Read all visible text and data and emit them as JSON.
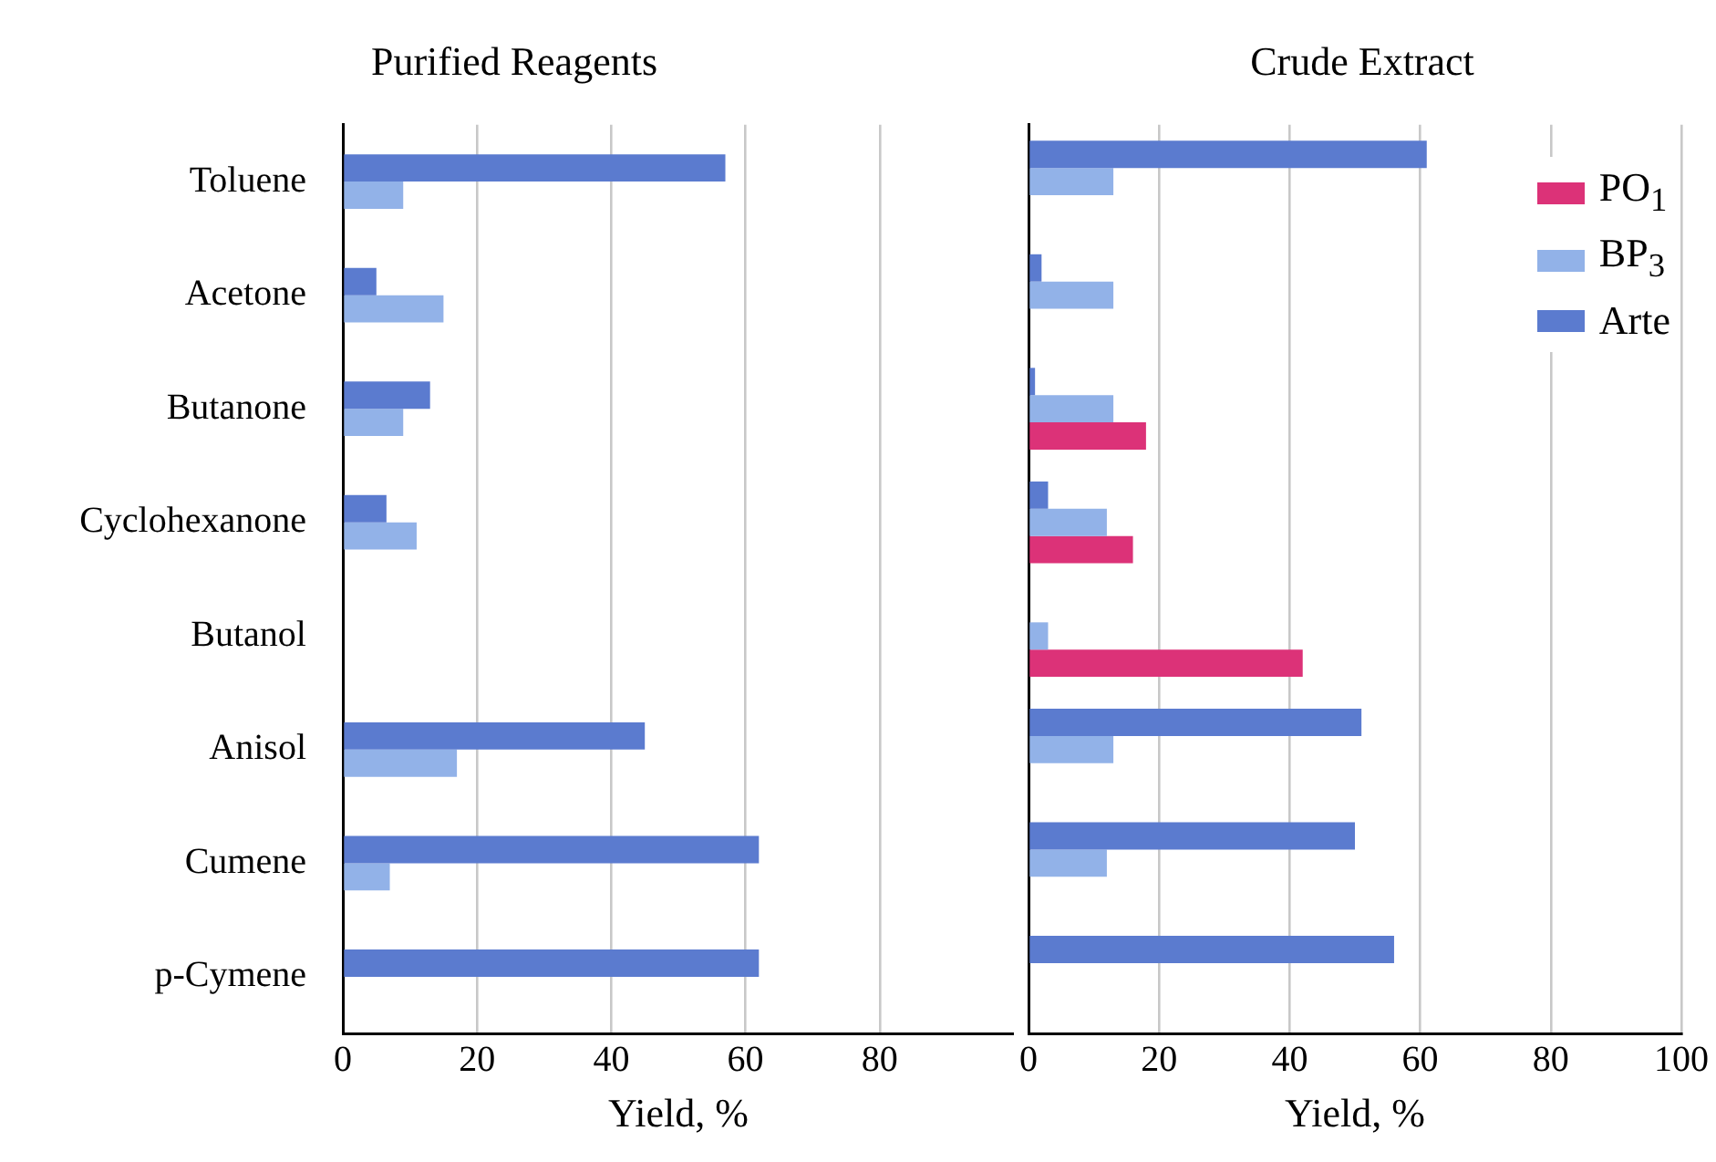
{
  "chart_data": [
    {
      "type": "bar",
      "orientation": "horizontal",
      "title": "Purified Reagents",
      "xlabel": "Yield, %",
      "categories": [
        "Toluene",
        "Acetone",
        "Butanone",
        "Cyclohexanone",
        "Butanol",
        "Anisol",
        "Cumene",
        "p-Cymene"
      ],
      "xlim": [
        0,
        100
      ],
      "xticks": [
        0,
        20,
        40,
        60,
        80
      ],
      "grid": "x",
      "legend": false,
      "series": [
        {
          "color": "#5b7bcf",
          "values": [
            57,
            5,
            13,
            6.5,
            0,
            45,
            62,
            62
          ]
        },
        {
          "color": "#92b2e8",
          "values": [
            9,
            15,
            9,
            11,
            0,
            17,
            7,
            0
          ]
        }
      ]
    },
    {
      "type": "bar",
      "orientation": "horizontal",
      "title": "Crude Extract",
      "xlabel": "Yield, %",
      "categories": [
        null,
        null,
        null,
        null,
        null,
        null,
        null,
        null
      ],
      "xlim": [
        0,
        100
      ],
      "xticks": [
        0,
        20,
        40,
        60,
        80,
        100
      ],
      "grid": "x",
      "legend": "top right",
      "tick_labels": "x",
      "series": [
        {
          "name": "Arte",
          "color": "#5b7bcf",
          "values": [
            61,
            2,
            1,
            3,
            0,
            51,
            50,
            56
          ]
        },
        {
          "name": "BP$_{3}$",
          "color": "#92b2e8",
          "values": [
            13,
            13,
            13,
            12,
            3,
            13,
            12,
            0
          ]
        },
        {
          "name": "PO$_{1}$",
          "color": "#dc3278",
          "values": [
            0,
            0,
            18,
            16,
            42,
            0,
            0,
            0
          ]
        }
      ]
    }
  ]
}
